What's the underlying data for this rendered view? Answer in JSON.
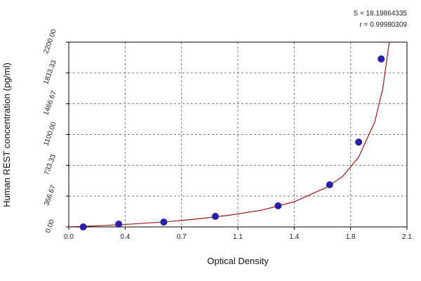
{
  "chart_data": {
    "type": "scatter",
    "annotations": [
      "S = 18.19864335",
      "r = 0.99980309"
    ],
    "xlabel": "Optical Density",
    "ylabel": "Human REST concentration (pg/ml)",
    "xlim": [
      0,
      2.1
    ],
    "ylim": [
      0,
      2200
    ],
    "xticks": [
      {
        "value": 0,
        "label": "0.0"
      },
      {
        "value": 0.35,
        "label": "0.4"
      },
      {
        "value": 0.7,
        "label": "0.7"
      },
      {
        "value": 1.05,
        "label": "1.1"
      },
      {
        "value": 1.4,
        "label": "1.4"
      },
      {
        "value": 1.75,
        "label": "1.8"
      },
      {
        "value": 2.1,
        "label": "2.1"
      }
    ],
    "yticks": [
      {
        "value": 0,
        "label": "0.00"
      },
      {
        "value": 366.67,
        "label": "366.67"
      },
      {
        "value": 733.33,
        "label": "733.33"
      },
      {
        "value": 1100,
        "label": "1100.00"
      },
      {
        "value": 1466.67,
        "label": "1466.67"
      },
      {
        "value": 1833.33,
        "label": "1833.33"
      },
      {
        "value": 2200,
        "label": "2200.00"
      }
    ],
    "grid": true,
    "series": [
      {
        "kind": "points",
        "color": "#2a1fa8",
        "x": [
          0.09,
          0.31,
          0.59,
          0.91,
          1.3,
          1.62,
          1.8,
          1.94
        ],
        "values": [
          0,
          33,
          58,
          125,
          251,
          502,
          1010,
          2000
        ]
      },
      {
        "kind": "curve",
        "color": "#a01818",
        "x": [
          0,
          0.2,
          0.4,
          0.6,
          0.8,
          1.0,
          1.2,
          1.4,
          1.6,
          1.7,
          1.8,
          1.9,
          1.95,
          1.99
        ],
        "values": [
          0,
          15,
          35,
          60,
          95,
          140,
          200,
          300,
          470,
          600,
          830,
          1250,
          1650,
          2200
        ]
      }
    ]
  }
}
